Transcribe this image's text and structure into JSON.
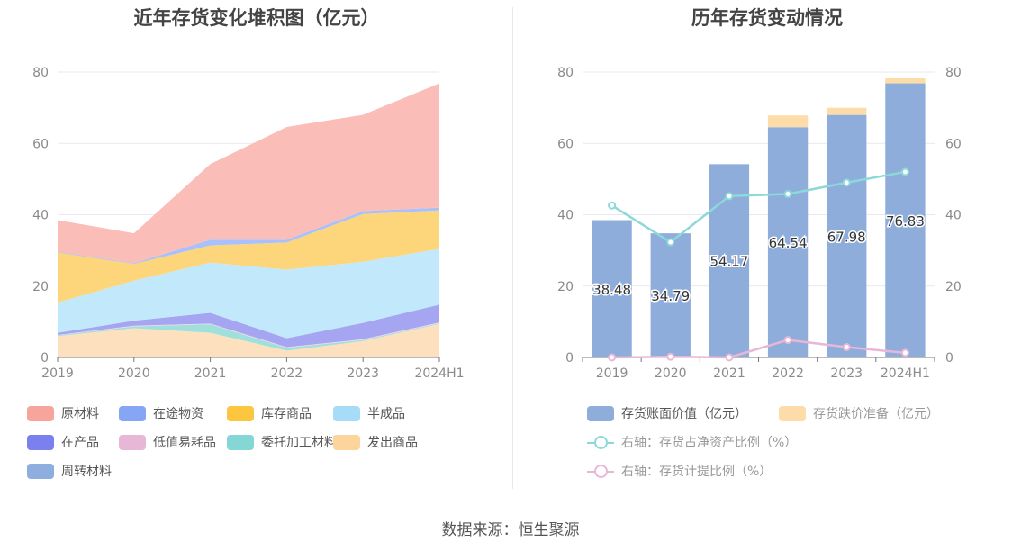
{
  "source_label": "数据来源：恒生聚源",
  "chart_data": [
    {
      "type": "area",
      "stacked": true,
      "title": "近年存货变化堆积图（亿元）",
      "categories": [
        "2019",
        "2020",
        "2021",
        "2022",
        "2023",
        "2024H1"
      ],
      "ylim": [
        0,
        80
      ],
      "yticks": [
        0,
        20,
        40,
        60,
        80
      ],
      "grid": true,
      "legend_position": "bottom",
      "series": [
        {
          "name": "周转材料",
          "color": "#8eaee0",
          "values": [
            0.1,
            0.1,
            0.1,
            0.1,
            0.2,
            0.3
          ]
        },
        {
          "name": "发出商品",
          "color": "#fde0bd",
          "values": [
            5.9,
            8.1,
            6.8,
            1.8,
            4.4,
            9.1
          ]
        },
        {
          "name": "委托加工材料",
          "color": "#9fe0dc",
          "values": [
            0.2,
            0.5,
            2.4,
            0.8,
            0.3,
            0.2
          ]
        },
        {
          "name": "低值易耗品",
          "color": "#f1d2e8",
          "values": [
            0.1,
            0.2,
            0.2,
            0.2,
            0.2,
            0.2
          ]
        },
        {
          "name": "在产品",
          "color": "#a5a5f2",
          "values": [
            0.6,
            1.4,
            3.0,
            2.5,
            4.6,
            5.0
          ]
        },
        {
          "name": "半成品",
          "color": "#c2e8fb",
          "values": [
            8.5,
            11.2,
            14.1,
            19.2,
            17.1,
            15.6
          ]
        },
        {
          "name": "库存商品",
          "color": "#fdd57a",
          "values": [
            14.0,
            4.7,
            4.8,
            7.6,
            13.4,
            10.8
          ]
        },
        {
          "name": "在途物资",
          "color": "#a8c1fc",
          "values": [
            0.2,
            0.2,
            1.6,
            0.8,
            0.8,
            0.8
          ]
        },
        {
          "name": "原材料",
          "color": "#fbbdb7",
          "values": [
            8.9,
            8.4,
            21.2,
            31.6,
            27.0,
            34.8
          ]
        }
      ],
      "legend": [
        {
          "name": "原材料",
          "color": "#f7a59c"
        },
        {
          "name": "在途物资",
          "color": "#86a6f5"
        },
        {
          "name": "库存商品",
          "color": "#fcc63e"
        },
        {
          "name": "半成品",
          "color": "#a6dcf7"
        },
        {
          "name": "在产品",
          "color": "#7a80ee"
        },
        {
          "name": "低值易耗品",
          "color": "#e8b7d8"
        },
        {
          "name": "委托加工材料",
          "color": "#85d7d6"
        },
        {
          "name": "发出商品",
          "color": "#fdd59c"
        },
        {
          "name": "周转材料",
          "color": "#8eaee0"
        }
      ]
    },
    {
      "type": "bar",
      "stacked": true,
      "title": "历年存货变动情况",
      "categories": [
        "2019",
        "2020",
        "2021",
        "2022",
        "2023",
        "2024H1"
      ],
      "ylim": [
        0,
        80
      ],
      "y2lim": [
        0,
        80
      ],
      "yticks": [
        0,
        20,
        40,
        60,
        80
      ],
      "grid": true,
      "legend_position": "bottom",
      "series": [
        {
          "name": "存货账面价值（亿元）",
          "kind": "bar",
          "color": "#8eaddb",
          "values": [
            38.48,
            34.79,
            54.17,
            64.54,
            67.98,
            76.83
          ],
          "labels": [
            "38.48",
            "34.79",
            "54.17",
            "64.54",
            "67.98",
            "76.83"
          ]
        },
        {
          "name": "存货跌价准备（亿元）",
          "kind": "bar",
          "color": "#fddcaa",
          "values": [
            0,
            0,
            0,
            3.3,
            2.0,
            1.4
          ]
        },
        {
          "name": "右轴：存货占净资产比例（%）",
          "kind": "line",
          "axis": "right",
          "color": "#8dd8d8",
          "values": [
            42.6,
            32.3,
            45.2,
            45.8,
            49.0,
            52.0
          ]
        },
        {
          "name": "右轴：存货计提比例（%）",
          "kind": "line",
          "axis": "right",
          "color": "#e8b7d8",
          "values": [
            0,
            0.2,
            0,
            4.9,
            2.9,
            1.3
          ]
        }
      ]
    }
  ]
}
